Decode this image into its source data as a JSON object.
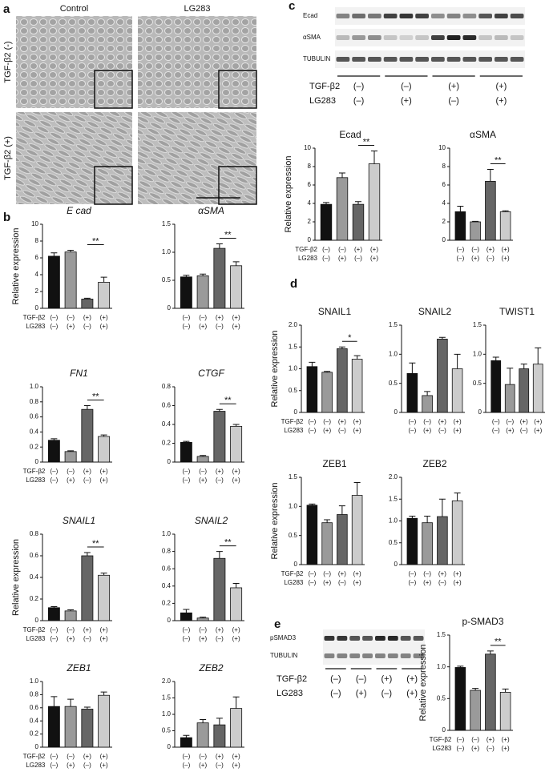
{
  "panel_labels": [
    "a",
    "b",
    "c",
    "d",
    "e"
  ],
  "micrographs": {
    "columns": [
      "Control",
      "LG283"
    ],
    "rows": [
      "TGF-β2 (-)",
      "TGF-β2 (+)"
    ]
  },
  "blot_c": {
    "bands": [
      "Ecad",
      "αSMA",
      "TUBULIN"
    ],
    "conditions": [
      {
        "name": "TGF-β2",
        "labels": [
          "(–)",
          "(–)",
          "(+)",
          "(+)"
        ]
      },
      {
        "name": "LG283",
        "labels": [
          "(–)",
          "(+)",
          "(–)",
          "(+)"
        ]
      }
    ]
  },
  "blot_e": {
    "bands": [
      "pSMAD3",
      "TUBULIN"
    ],
    "conditions": [
      {
        "name": "TGF-β2",
        "labels": [
          "(–)",
          "(–)",
          "(+)",
          "(+)"
        ]
      },
      {
        "name": "LG283",
        "labels": [
          "(–)",
          "(+)",
          "(–)",
          "(+)"
        ]
      }
    ]
  },
  "chart_data": [
    {
      "type": "bar",
      "title": "E cad",
      "italic": true,
      "ylabel": "Relative expression",
      "values": [
        6.2,
        6.7,
        1.1,
        3.1
      ],
      "errors": [
        0.4,
        0.2,
        0.1,
        0.6
      ],
      "annotation": "**",
      "colors": [
        "#111111",
        "#9a9a9a",
        "#666666",
        "#cccccc"
      ],
      "ylim": [
        0,
        10
      ],
      "yticks": [
        0,
        2,
        4,
        6,
        8,
        10
      ],
      "conditions": [
        {
          "name": "TGF-β2",
          "labels": [
            "(–)",
            "(–)",
            "(+)",
            "(+)"
          ]
        },
        {
          "name": "LG283",
          "labels": [
            "(–)",
            "(+)",
            "(–)",
            "(+)"
          ]
        }
      ]
    },
    {
      "type": "bar",
      "title": "αSMA",
      "italic": true,
      "values": [
        0.56,
        0.58,
        1.07,
        0.76
      ],
      "errors": [
        0.03,
        0.03,
        0.08,
        0.07
      ],
      "annotation": "**",
      "colors": [
        "#111111",
        "#9a9a9a",
        "#666666",
        "#cccccc"
      ],
      "ylim": [
        0,
        1.5
      ],
      "yticks": [
        0,
        0.5,
        {
          "value": 1,
          "label": "1.0"
        },
        1.5
      ],
      "conditions": [
        {
          "labels": [
            "(–)",
            "(–)",
            "(+)",
            "(+)"
          ]
        },
        {
          "labels": [
            "(–)",
            "(+)",
            "(–)",
            "(+)"
          ]
        }
      ]
    },
    {
      "type": "bar",
      "title": "FN1",
      "italic": true,
      "values": [
        0.29,
        0.14,
        0.7,
        0.34
      ],
      "errors": [
        0.02,
        0.01,
        0.05,
        0.02
      ],
      "annotation": "**",
      "colors": [
        "#111111",
        "#9a9a9a",
        "#666666",
        "#cccccc"
      ],
      "ylim": [
        0,
        1
      ],
      "yticks": [
        0,
        0.2,
        0.4,
        0.6,
        0.8,
        {
          "value": 1,
          "label": "1.0"
        }
      ],
      "conditions": [
        {
          "name": "TGF-β2",
          "labels": [
            "(–)",
            "(–)",
            "(+)",
            "(+)"
          ]
        },
        {
          "name": "LG283",
          "labels": [
            "(–)",
            "(+)",
            "(–)",
            "(+)"
          ]
        }
      ]
    },
    {
      "type": "bar",
      "title": "CTGF",
      "italic": true,
      "values": [
        0.21,
        0.06,
        0.54,
        0.38
      ],
      "errors": [
        0.01,
        0.01,
        0.02,
        0.02
      ],
      "annotation": "**",
      "colors": [
        "#111111",
        "#9a9a9a",
        "#666666",
        "#cccccc"
      ],
      "ylim": [
        0,
        0.8
      ],
      "yticks": [
        0,
        0.2,
        0.4,
        0.6,
        0.8
      ],
      "conditions": [
        {
          "labels": [
            "(–)",
            "(–)",
            "(+)",
            "(+)"
          ]
        },
        {
          "labels": [
            "(–)",
            "(+)",
            "(–)",
            "(+)"
          ]
        }
      ]
    },
    {
      "type": "bar",
      "title": "SNAIL1",
      "italic": true,
      "ylabel": "Relative expression",
      "values": [
        0.12,
        0.09,
        0.6,
        0.42
      ],
      "errors": [
        0.01,
        0.01,
        0.03,
        0.02
      ],
      "annotation": "**",
      "colors": [
        "#111111",
        "#9a9a9a",
        "#666666",
        "#cccccc"
      ],
      "ylim": [
        0,
        0.8
      ],
      "yticks": [
        0,
        0.2,
        0.4,
        0.6,
        0.8
      ],
      "conditions": [
        {
          "name": "TGF-β2",
          "labels": [
            "(–)",
            "(–)",
            "(+)",
            "(+)"
          ]
        },
        {
          "name": "LG283",
          "labels": [
            "(–)",
            "(+)",
            "(–)",
            "(+)"
          ]
        }
      ]
    },
    {
      "type": "bar",
      "title": "SNAIL2",
      "italic": true,
      "values": [
        0.09,
        0.03,
        0.72,
        0.38
      ],
      "errors": [
        0.04,
        0.01,
        0.08,
        0.05
      ],
      "annotation": "**",
      "colors": [
        "#111111",
        "#9a9a9a",
        "#666666",
        "#cccccc"
      ],
      "ylim": [
        0,
        1
      ],
      "yticks": [
        0,
        0.2,
        0.4,
        0.6,
        0.8,
        {
          "value": 1,
          "label": "1.0"
        }
      ],
      "conditions": [
        {
          "labels": [
            "(–)",
            "(–)",
            "(+)",
            "(+)"
          ]
        },
        {
          "labels": [
            "(–)",
            "(+)",
            "(–)",
            "(+)"
          ]
        }
      ]
    },
    {
      "type": "bar",
      "title": "ZEB1",
      "italic": true,
      "values": [
        0.62,
        0.62,
        0.58,
        0.79
      ],
      "errors": [
        0.15,
        0.11,
        0.03,
        0.05
      ],
      "colors": [
        "#111111",
        "#9a9a9a",
        "#666666",
        "#cccccc"
      ],
      "ylim": [
        0,
        1
      ],
      "yticks": [
        0,
        0.2,
        0.4,
        0.6,
        0.8,
        {
          "value": 1,
          "label": "1.0"
        }
      ],
      "conditions": [
        {
          "name": "TGF-β2",
          "labels": [
            "(–)",
            "(–)",
            "(+)",
            "(+)"
          ]
        },
        {
          "name": "LG283",
          "labels": [
            "(–)",
            "(+)",
            "(–)",
            "(+)"
          ]
        }
      ]
    },
    {
      "type": "bar",
      "title": "ZEB2",
      "italic": true,
      "values": [
        0.29,
        0.74,
        0.68,
        1.18
      ],
      "errors": [
        0.07,
        0.1,
        0.2,
        0.35
      ],
      "colors": [
        "#111111",
        "#9a9a9a",
        "#666666",
        "#cccccc"
      ],
      "ylim": [
        0,
        2
      ],
      "yticks": [
        0,
        0.5,
        {
          "value": 1,
          "label": "1.0"
        },
        1.5,
        {
          "value": 2,
          "label": "2.0"
        }
      ],
      "conditions": [
        {
          "labels": [
            "(–)",
            "(–)",
            "(+)",
            "(+)"
          ]
        },
        {
          "labels": [
            "(–)",
            "(+)",
            "(–)",
            "(+)"
          ]
        }
      ]
    },
    {
      "type": "bar",
      "title": "Ecad",
      "ylabel": "Relative expression",
      "values": [
        3.9,
        6.8,
        3.9,
        8.3
      ],
      "errors": [
        0.2,
        0.5,
        0.3,
        1.4
      ],
      "annotation": "**",
      "colors": [
        "#111111",
        "#9a9a9a",
        "#666666",
        "#cccccc"
      ],
      "ylim": [
        0,
        10
      ],
      "yticks": [
        0,
        2,
        4,
        6,
        8,
        10
      ],
      "conditions": [
        {
          "name": "TGF-β2",
          "labels": [
            "(–)",
            "(–)",
            "(+)",
            "(+)"
          ]
        },
        {
          "name": "LG283",
          "labels": [
            "(–)",
            "(+)",
            "(–)",
            "(+)"
          ]
        }
      ]
    },
    {
      "type": "bar",
      "title": "αSMA",
      "values": [
        3.1,
        2.0,
        6.4,
        3.1
      ],
      "errors": [
        0.6,
        0.05,
        1.3,
        0.1
      ],
      "annotation": "**",
      "colors": [
        "#111111",
        "#9a9a9a",
        "#666666",
        "#cccccc"
      ],
      "ylim": [
        0,
        10
      ],
      "yticks": [
        0,
        2,
        4,
        6,
        8,
        10
      ],
      "conditions": [
        {
          "labels": [
            "(–)",
            "(–)",
            "(+)",
            "(+)"
          ]
        },
        {
          "labels": [
            "(–)",
            "(+)",
            "(–)",
            "(+)"
          ]
        }
      ]
    },
    {
      "type": "bar",
      "title": "SNAIL1",
      "ylabel": "Relative expression",
      "values": [
        1.05,
        0.92,
        1.46,
        1.22
      ],
      "errors": [
        0.1,
        0.02,
        0.04,
        0.08
      ],
      "annotation": "*",
      "colors": [
        "#111111",
        "#9a9a9a",
        "#666666",
        "#cccccc"
      ],
      "ylim": [
        0,
        2
      ],
      "yticks": [
        0,
        0.5,
        {
          "value": 1,
          "label": "1.0"
        },
        1.5,
        {
          "value": 2,
          "label": "2.0"
        }
      ],
      "conditions": [
        {
          "name": "TGF-β2",
          "labels": [
            "(–)",
            "(–)",
            "(+)",
            "(+)"
          ]
        },
        {
          "name": "LG283",
          "labels": [
            "(–)",
            "(+)",
            "(–)",
            "(+)"
          ]
        }
      ]
    },
    {
      "type": "bar",
      "title": "SNAIL2",
      "values": [
        0.67,
        0.29,
        1.26,
        0.75
      ],
      "errors": [
        0.18,
        0.07,
        0.03,
        0.25
      ],
      "colors": [
        "#111111",
        "#9a9a9a",
        "#666666",
        "#cccccc"
      ],
      "ylim": [
        0,
        1.5
      ],
      "yticks": [
        0,
        0.5,
        {
          "value": 1,
          "label": "1.0"
        },
        1.5
      ],
      "conditions": [
        {
          "labels": [
            "(–)",
            "(–)",
            "(+)",
            "(+)"
          ]
        },
        {
          "labels": [
            "(–)",
            "(+)",
            "(–)",
            "(+)"
          ]
        }
      ]
    },
    {
      "type": "bar",
      "title": "TWIST1",
      "values": [
        0.89,
        0.48,
        0.75,
        0.83
      ],
      "errors": [
        0.06,
        0.28,
        0.08,
        0.28
      ],
      "colors": [
        "#111111",
        "#9a9a9a",
        "#666666",
        "#cccccc"
      ],
      "ylim": [
        0,
        1.5
      ],
      "yticks": [
        0,
        0.5,
        {
          "value": 1,
          "label": "1.0"
        },
        1.5
      ],
      "conditions": [
        {
          "labels": [
            "(–)",
            "(–)",
            "(+)",
            "(+)"
          ]
        },
        {
          "labels": [
            "(–)",
            "(+)",
            "(–)",
            "(+)"
          ]
        }
      ]
    },
    {
      "type": "bar",
      "title": "ZEB1",
      "ylabel": "Relative expression",
      "values": [
        1.02,
        0.72,
        0.86,
        1.19
      ],
      "errors": [
        0.02,
        0.05,
        0.15,
        0.22
      ],
      "colors": [
        "#111111",
        "#9a9a9a",
        "#666666",
        "#cccccc"
      ],
      "ylim": [
        0,
        1.5
      ],
      "yticks": [
        0,
        0.5,
        {
          "value": 1,
          "label": "1.0"
        },
        1.5
      ],
      "conditions": [
        {
          "name": "TGF-β2",
          "labels": [
            "(–)",
            "(–)",
            "(+)",
            "(+)"
          ]
        },
        {
          "name": "LG283",
          "labels": [
            "(–)",
            "(+)",
            "(–)",
            "(+)"
          ]
        }
      ]
    },
    {
      "type": "bar",
      "title": "ZEB2",
      "values": [
        1.06,
        0.96,
        1.1,
        1.46
      ],
      "errors": [
        0.05,
        0.15,
        0.4,
        0.18
      ],
      "colors": [
        "#111111",
        "#9a9a9a",
        "#666666",
        "#cccccc"
      ],
      "ylim": [
        0,
        2
      ],
      "yticks": [
        0,
        0.5,
        {
          "value": 1,
          "label": "1.0"
        },
        1.5,
        {
          "value": 2,
          "label": "2.0"
        }
      ],
      "conditions": [
        {
          "labels": [
            "(–)",
            "(–)",
            "(+)",
            "(+)"
          ]
        },
        {
          "labels": [
            "(–)",
            "(+)",
            "(–)",
            "(+)"
          ]
        }
      ]
    },
    {
      "type": "bar",
      "title": "p-SMAD3",
      "ylabel": "Relative expression",
      "values": [
        0.99,
        0.63,
        1.2,
        0.6
      ],
      "errors": [
        0.02,
        0.03,
        0.05,
        0.05
      ],
      "annotation": "**",
      "colors": [
        "#111111",
        "#9a9a9a",
        "#666666",
        "#cccccc"
      ],
      "ylim": [
        0,
        1.5
      ],
      "yticks": [
        0,
        0.5,
        {
          "value": 1,
          "label": "1.0"
        },
        1.5
      ],
      "conditions": [
        {
          "name": "TGF-β2",
          "labels": [
            "(–)",
            "(–)",
            "(+)",
            "(+)"
          ]
        },
        {
          "name": "LG283",
          "labels": [
            "(–)",
            "(+)",
            "(–)",
            "(+)"
          ]
        }
      ]
    }
  ]
}
